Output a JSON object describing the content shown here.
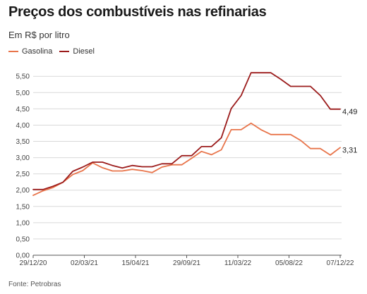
{
  "chart_data": {
    "type": "line",
    "title": "Preços dos combustíveis nas refinarias",
    "subtitle": "Em R$ por litro",
    "source": "Fonte: Petrobras",
    "x_tick_labels": [
      "29/12/20",
      "02/03/21",
      "15/04/21",
      "29/09/21",
      "11/03/22",
      "05/08/22",
      "07/12/22"
    ],
    "y_tick_labels": [
      "0,00",
      "0,50",
      "1,00",
      "1,50",
      "2,00",
      "2,50",
      "3,00",
      "3,50",
      "4,00",
      "4,50",
      "5,00",
      "5,50"
    ],
    "ylim": [
      0,
      5.7
    ],
    "grid": true,
    "legend_position": "top-left",
    "series": [
      {
        "name": "Gasolina",
        "color": "#e8744a",
        "end_label": "3,31",
        "values": [
          1.84,
          1.98,
          2.08,
          2.24,
          2.48,
          2.6,
          2.84,
          2.69,
          2.59,
          2.59,
          2.64,
          2.6,
          2.54,
          2.71,
          2.78,
          2.78,
          2.98,
          3.19,
          3.09,
          3.24,
          3.86,
          3.86,
          4.06,
          3.86,
          3.71,
          3.71,
          3.71,
          3.53,
          3.28,
          3.28,
          3.08,
          3.31
        ]
      },
      {
        "name": "Diesel",
        "color": "#9b1b1b",
        "end_label": "4,49",
        "values": [
          2.02,
          2.02,
          2.12,
          2.24,
          2.58,
          2.71,
          2.86,
          2.86,
          2.76,
          2.68,
          2.76,
          2.72,
          2.72,
          2.81,
          2.81,
          3.06,
          3.06,
          3.34,
          3.34,
          3.61,
          4.51,
          4.91,
          5.61,
          5.61,
          5.61,
          5.41,
          5.19,
          5.19,
          5.19,
          4.91,
          4.49,
          4.49
        ]
      }
    ]
  }
}
